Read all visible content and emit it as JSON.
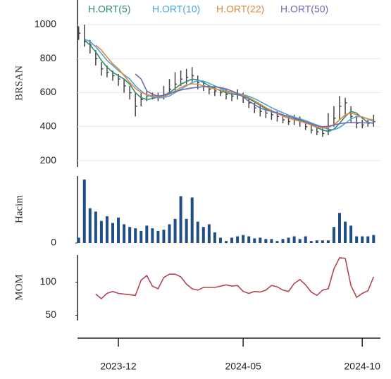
{
  "chart_data": [
    {
      "type": "candlestick",
      "ylabel": "BRSAN",
      "ylim": [
        163,
        1145
      ],
      "yticks": [
        200,
        400,
        600,
        800,
        1000
      ],
      "grid": true,
      "candle_color": "#444444",
      "high": [
        990,
        1000,
        910,
        850,
        780,
        760,
        730,
        710,
        680,
        640,
        600,
        600,
        610,
        600,
        600,
        640,
        680,
        720,
        730,
        740,
        750,
        700,
        670,
        640,
        640,
        620,
        620,
        600,
        620,
        600,
        570,
        540,
        520,
        510,
        500,
        490,
        470,
        460,
        470,
        460,
        430,
        410,
        400,
        390,
        480,
        520,
        580,
        570,
        520,
        460,
        440,
        440,
        470
      ],
      "low": [
        910,
        870,
        830,
        760,
        700,
        690,
        670,
        640,
        600,
        560,
        460,
        520,
        550,
        560,
        550,
        560,
        590,
        610,
        640,
        650,
        660,
        620,
        610,
        590,
        580,
        580,
        560,
        550,
        560,
        540,
        510,
        480,
        460,
        450,
        440,
        430,
        420,
        410,
        410,
        400,
        380,
        360,
        350,
        340,
        350,
        400,
        440,
        470,
        420,
        390,
        390,
        400,
        400
      ],
      "close": [
        950,
        900,
        880,
        800,
        740,
        720,
        700,
        680,
        640,
        600,
        520,
        560,
        580,
        580,
        570,
        590,
        620,
        650,
        680,
        690,
        700,
        660,
        640,
        620,
        610,
        600,
        590,
        580,
        590,
        570,
        540,
        510,
        490,
        480,
        470,
        460,
        440,
        430,
        440,
        430,
        400,
        380,
        370,
        360,
        380,
        450,
        520,
        540,
        460,
        420,
        410,
        420,
        430
      ],
      "series": [
        {
          "name": "H.ORT(5)",
          "color": "#2f8a72",
          "values": [
            null,
            910,
            880,
            840,
            790,
            750,
            720,
            700,
            680,
            650,
            600,
            570,
            560,
            565,
            575,
            585,
            600,
            625,
            650,
            665,
            680,
            675,
            660,
            640,
            625,
            612,
            600,
            592,
            588,
            580,
            565,
            545,
            525,
            505,
            490,
            478,
            465,
            450,
            442,
            438,
            425,
            410,
            395,
            380,
            372,
            385,
            420,
            460,
            490,
            480,
            450,
            425,
            420
          ]
        },
        {
          "name": "H.ORT(10)",
          "color": "#4aa3df",
          "values": [
            null,
            915,
            900,
            870,
            830,
            790,
            760,
            730,
            705,
            680,
            640,
            610,
            585,
            575,
            570,
            572,
            580,
            600,
            620,
            640,
            660,
            670,
            668,
            655,
            640,
            625,
            612,
            602,
            595,
            588,
            578,
            565,
            548,
            530,
            512,
            496,
            482,
            468,
            456,
            446,
            436,
            422,
            410,
            396,
            385,
            382,
            395,
            420,
            445,
            460,
            458,
            445,
            430
          ]
        },
        {
          "name": "H.ORT(22)",
          "color": "#e0893f",
          "values": [
            null,
            null,
            null,
            880,
            850,
            810,
            770,
            740,
            700,
            660,
            625,
            600,
            590,
            580,
            575,
            578,
            590,
            610,
            630,
            645,
            652,
            650,
            640,
            630,
            622,
            615,
            608,
            600,
            594,
            585,
            570,
            552,
            532,
            512,
            495,
            478,
            462,
            450,
            440,
            432,
            422,
            410,
            398,
            392,
            395,
            410,
            440,
            470,
            480,
            470,
            455,
            445,
            440
          ]
        },
        {
          "name": "H.ORT(50)",
          "color": "#6c6bb3",
          "values": [
            null,
            null,
            null,
            null,
            null,
            null,
            null,
            null,
            null,
            null,
            710,
            680,
            610,
            590,
            580,
            585,
            595,
            605,
            615,
            622,
            628,
            632,
            635,
            636,
            634,
            630,
            622,
            610,
            595,
            575,
            550,
            530,
            510,
            498,
            490,
            482,
            470,
            460,
            450,
            440,
            428,
            416,
            405,
            400,
            402,
            410,
            418,
            422,
            424,
            424,
            423,
            422,
            422
          ]
        }
      ]
    },
    {
      "type": "bar",
      "ylabel": "Hacim",
      "ylim": [
        0,
        100
      ],
      "yticks": [
        0
      ],
      "color": "#1f4e85",
      "values": [
        8,
        95,
        52,
        47,
        33,
        40,
        30,
        38,
        28,
        24,
        22,
        18,
        26,
        22,
        18,
        20,
        28,
        36,
        70,
        36,
        68,
        32,
        24,
        28,
        16,
        8,
        3,
        8,
        10,
        12,
        10,
        7,
        8,
        6,
        6,
        3,
        6,
        8,
        10,
        6,
        10,
        3,
        4,
        4,
        4,
        24,
        45,
        32,
        26,
        10,
        10,
        10,
        12
      ]
    },
    {
      "type": "line",
      "ylabel": "MOM",
      "ylim": [
        42,
        141
      ],
      "yticks": [
        50,
        100
      ],
      "color": "#b5454f",
      "categories": [
        null,
        null,
        null,
        null,
        null,
        null,
        null,
        "2023-12",
        null,
        null,
        null,
        null,
        null,
        null,
        null,
        null,
        null,
        null,
        null,
        null,
        null,
        null,
        null,
        null,
        null,
        null,
        null,
        null,
        null,
        "2024-05",
        null,
        null,
        null,
        null,
        null,
        null,
        null,
        null,
        null,
        null,
        null,
        null,
        null,
        null,
        null,
        null,
        null,
        null,
        null,
        null,
        "2024-10",
        null,
        null
      ],
      "values": [
        null,
        null,
        null,
        82,
        75,
        83,
        86,
        83,
        82,
        81,
        80,
        103,
        110,
        94,
        90,
        107,
        112,
        112,
        108,
        97,
        90,
        88,
        92,
        92,
        92,
        94,
        96,
        94,
        95,
        86,
        83,
        86,
        85,
        88,
        95,
        93,
        88,
        86,
        98,
        104,
        96,
        85,
        80,
        88,
        90,
        120,
        137,
        136,
        95,
        77,
        83,
        87,
        108
      ]
    }
  ]
}
